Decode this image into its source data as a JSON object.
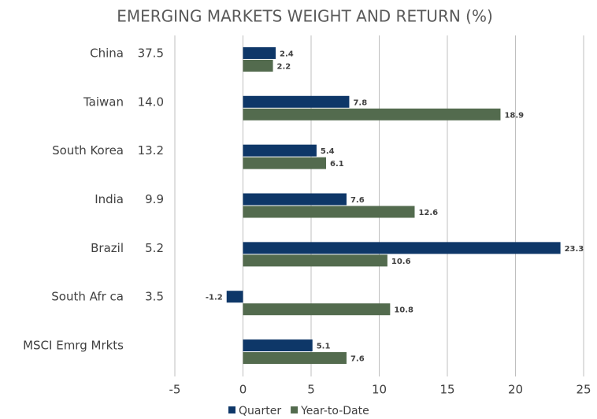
{
  "chart_data": {
    "type": "bar",
    "orientation": "horizontal",
    "title": "EMERGING MARKETS WEIGHT AND RETURN (%)",
    "categories": [
      "China",
      "Taiwan",
      "South Korea",
      "India",
      "Brazil",
      "South Afr ca",
      "MSCI Emrg Mrkts"
    ],
    "weights": [
      "37.5",
      "14.0",
      "13.2",
      "9.9",
      "5.2",
      "3.5",
      null
    ],
    "series": [
      {
        "name": "Quarter",
        "color": "#0e3768",
        "values": [
          2.4,
          7.8,
          5.4,
          7.6,
          23.3,
          -1.2,
          5.1
        ]
      },
      {
        "name": "Year-to-Date",
        "color": "#536b4e",
        "values": [
          2.2,
          18.9,
          6.1,
          12.6,
          10.6,
          10.8,
          7.6
        ]
      }
    ],
    "xlim": [
      -5,
      25
    ],
    "xticks": [
      -5,
      0,
      5,
      10,
      15,
      20,
      25
    ],
    "grid": true,
    "legend": "bottom"
  }
}
